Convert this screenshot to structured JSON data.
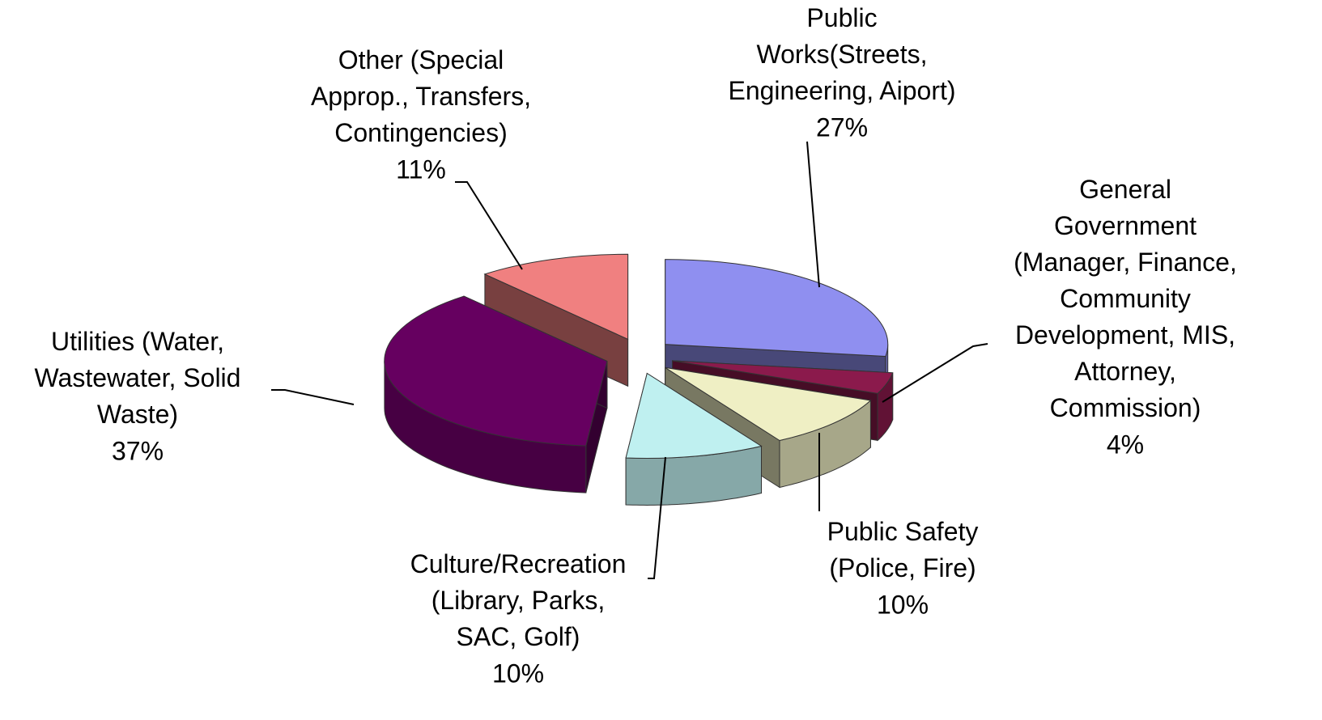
{
  "chart_data": {
    "type": "pie3d",
    "categories": [
      "Public\nWorks(Streets,\nEngineering, Aiport)",
      "General\nGovernment\n(Manager, Finance,\nCommunity\nDevelopment, MIS,\nAttorney,\nCommission)",
      "Public Safety\n(Police, Fire)",
      "Culture/Recreation\n(Library, Parks,\nSAC, Golf)",
      "Utilities (Water,\nWastewater, Solid\nWaste)",
      "Other (Special\nApprop., Transfers,\nContingencies)"
    ],
    "values": [
      27,
      4,
      10,
      10,
      37,
      11
    ],
    "value_labels": [
      "27%",
      "4%",
      "10%",
      "10%",
      "37%",
      "11%"
    ],
    "colors": [
      "#8f8ff0",
      "#8b1a4c",
      "#efefc4",
      "#bff0f0",
      "#660060",
      "#f08080"
    ]
  }
}
